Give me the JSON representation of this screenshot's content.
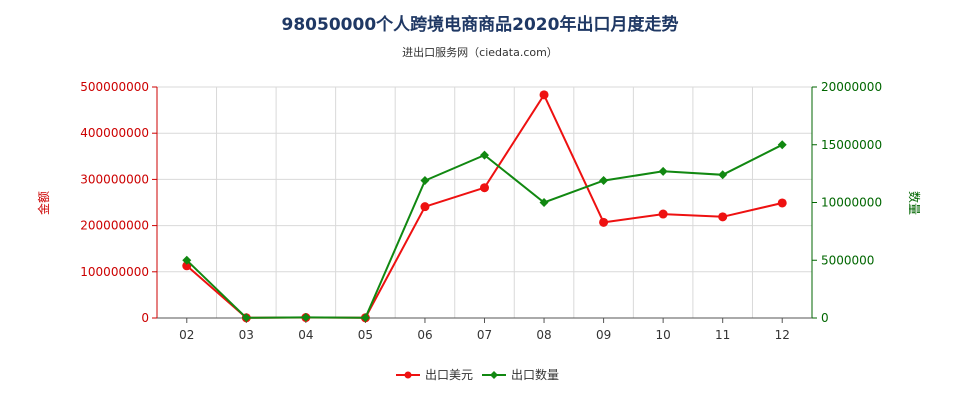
{
  "chart_data": {
    "type": "line",
    "title": "98050000个人跨境电商商品2020年出口月度走势",
    "subtitle": "进出口服务网（ciedata.com）",
    "categories": [
      "02",
      "03",
      "04",
      "05",
      "06",
      "07",
      "08",
      "09",
      "10",
      "11",
      "12"
    ],
    "y_left": {
      "label": "金额",
      "ylim": [
        0,
        500000000
      ],
      "ticks": [
        "0",
        "100000000",
        "200000000",
        "300000000",
        "400000000",
        "500000000"
      ],
      "color": "#ee1111"
    },
    "y_right": {
      "label": "数量",
      "ylim": [
        0,
        20000000
      ],
      "ticks": [
        "0",
        "5000000",
        "10000000",
        "15000000",
        "20000000"
      ],
      "color": "#118811"
    },
    "series": [
      {
        "name": "出口美元",
        "axis": "left",
        "color": "#ee1111",
        "marker": "circle",
        "values": [
          113000000,
          500000,
          1000000,
          500000,
          241000000,
          282000000,
          483000000,
          207000000,
          225000000,
          219000000,
          249000000
        ]
      },
      {
        "name": "出口数量",
        "axis": "right",
        "color": "#118811",
        "marker": "diamond",
        "values": [
          5000000,
          20000,
          50000,
          20000,
          11900000,
          14100000,
          10000000,
          11900000,
          12700000,
          12400000,
          15000000
        ]
      }
    ],
    "grid": true,
    "legend": "bottom-center"
  }
}
